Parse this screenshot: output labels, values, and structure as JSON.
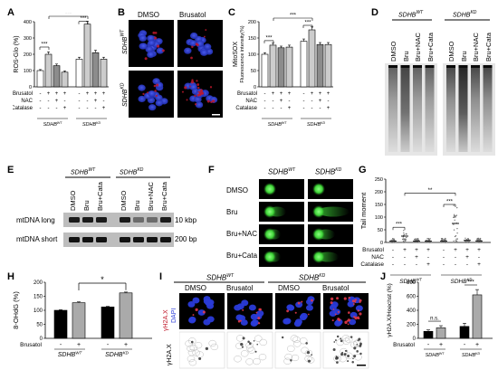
{
  "panels": {
    "A": {
      "label": "A",
      "ylabel": "ROS-Glo (%)",
      "yticks": [
        "0",
        "100",
        "200",
        "300",
        "400"
      ],
      "ymax": 400,
      "values": [
        100,
        200,
        130,
        90,
        170,
        385,
        210,
        170
      ],
      "errors": [
        6,
        15,
        10,
        8,
        12,
        18,
        15,
        12
      ],
      "fills": [
        "#ffffff",
        "#cccccc",
        "#8c8c8c",
        "#cccccc",
        "#ffffff",
        "#cccccc",
        "#8c8c8c",
        "#cccccc"
      ],
      "sig_left": "***",
      "sig_right": "***",
      "sig_top": "***",
      "rows": [
        {
          "name": "Brusatol",
          "signs": [
            "-",
            "+",
            "+",
            "+",
            "-",
            "+",
            "+",
            "+"
          ]
        },
        {
          "name": "NAC",
          "signs": [
            "-",
            "-",
            "+",
            "-",
            "-",
            "-",
            "+",
            "-"
          ]
        },
        {
          "name": "Catalase",
          "signs": [
            "-",
            "-",
            "-",
            "+",
            "-",
            "-",
            "-",
            "+"
          ]
        }
      ],
      "groups": [
        "SDHB^WT",
        "SDHB^KD"
      ]
    },
    "B": {
      "label": "B",
      "cols": [
        "DMSO",
        "Brusatol"
      ],
      "rows": [
        "SDHB^WT",
        "SDHB^KD"
      ]
    },
    "C": {
      "label": "C",
      "ylabel": "MitoSOX",
      "ylabel2": "Fluorescence intensity(%)",
      "yticks": [
        "0",
        "50",
        "100",
        "150",
        "200"
      ],
      "ymax": 200,
      "values": [
        100,
        128,
        120,
        122,
        140,
        175,
        130,
        130
      ],
      "errors": [
        5,
        6,
        5,
        6,
        7,
        9,
        6,
        6
      ],
      "fills": [
        "#ffffff",
        "#cccccc",
        "#8c8c8c",
        "#cccccc",
        "#ffffff",
        "#cccccc",
        "#8c8c8c",
        "#cccccc"
      ],
      "sig_left": "***",
      "sig_right": "***",
      "sig_top": "***",
      "rows": [
        {
          "name": "Brusatol",
          "signs": [
            "-",
            "+",
            "+",
            "+",
            "-",
            "+",
            "+",
            "+"
          ]
        },
        {
          "name": "NAC",
          "signs": [
            "-",
            "-",
            "+",
            "-",
            "-",
            "-",
            "+",
            "-"
          ]
        },
        {
          "name": "Catalase",
          "signs": [
            "-",
            "-",
            "-",
            "+",
            "-",
            "-",
            "-",
            "+"
          ]
        }
      ],
      "groups": [
        "SDHB^WT",
        "SDHB^KD"
      ]
    },
    "D": {
      "label": "D",
      "groups": [
        "SDHB^WT",
        "SDHB^KD"
      ],
      "lanes": [
        "DMSO",
        "Bru",
        "Bru+NAC",
        "Bru+Cata",
        "DMSO",
        "Bru",
        "Bru+NAC",
        "Bru+Cata"
      ]
    },
    "E": {
      "label": "E",
      "groups": [
        "SDHB^WT",
        "SDHB^KD"
      ],
      "lanes": [
        "DMSO",
        "Bru",
        "Bru+Cata",
        "DMSO",
        "Bru",
        "Bru+NAC",
        "Bru+Cata"
      ],
      "bands": [
        {
          "name": "mtDNA long",
          "size": "10 kbp"
        },
        {
          "name": "mtDNA short",
          "size": "200 bp"
        }
      ]
    },
    "F": {
      "label": "F",
      "cols": [
        "SDHB^WT",
        "SDHB^KD"
      ],
      "rows": [
        "DMSO",
        "Bru",
        "Bru+NAC",
        "Bru+Cata"
      ]
    },
    "G": {
      "label": "G",
      "ylabel": "Tail moment",
      "yticks": [
        "0",
        "50",
        "100",
        "150",
        "200",
        "250"
      ],
      "ymax": 250,
      "means": [
        5,
        25,
        5,
        5,
        5,
        75,
        8,
        6
      ],
      "sig_left": "***",
      "sig_right": "***",
      "sig_top": "**",
      "rows": [
        {
          "name": "Brusatol",
          "signs": [
            "-",
            "+",
            "+",
            "+",
            "-",
            "+",
            "+",
            "+"
          ]
        },
        {
          "name": "NAC",
          "signs": [
            "-",
            "-",
            "+",
            "-",
            "-",
            "-",
            "+",
            "-"
          ]
        },
        {
          "name": "Catalase",
          "signs": [
            "-",
            "-",
            "-",
            "+",
            "-",
            "-",
            "-",
            "+"
          ]
        }
      ],
      "groups": [
        "SDHB^WT",
        "SDHB^KD"
      ]
    },
    "H": {
      "label": "H",
      "ylabel": "8-OHdG (%)",
      "yticks": [
        "0",
        "50",
        "100",
        "150",
        "200"
      ],
      "ymax": 200,
      "values": [
        100,
        127,
        112,
        162
      ],
      "errors": [
        2,
        3,
        2,
        3
      ],
      "fills": [
        "#000000",
        "#aaaaaa",
        "#000000",
        "#aaaaaa"
      ],
      "sig": "*",
      "row": {
        "name": "Brusatol",
        "signs": [
          "-",
          "+",
          "-",
          "+"
        ]
      },
      "groups": [
        "SDHB^WT",
        "SDHB^KD"
      ]
    },
    "I": {
      "label": "I",
      "groups": [
        "SDHB^WT",
        "SDHB^KD"
      ],
      "cols": [
        "DMSO",
        "Brusatol",
        "DMSO",
        "Brusatol"
      ],
      "row_labels": [
        "γH2A.X",
        "DAPI",
        "γH2A.X"
      ]
    },
    "J": {
      "label": "J",
      "ylabel": "γH2A.X/Hoechst (%)",
      "yticks": [
        "0",
        "200",
        "400",
        "600",
        "800"
      ],
      "ymax": 800,
      "values": [
        100,
        150,
        170,
        620
      ],
      "errors": [
        20,
        30,
        45,
        75
      ],
      "fills": [
        "#000000",
        "#aaaaaa",
        "#000000",
        "#aaaaaa"
      ],
      "sig_left": "n.s.",
      "sig_right": "***",
      "row": {
        "name": "Brusatol",
        "signs": [
          "-",
          "+",
          "-",
          "+"
        ]
      },
      "groups": [
        "SDHB^WT",
        "SDHB^KD"
      ]
    }
  },
  "colors": {
    "nucleus_blue": "#2a3bd8",
    "signal_red": "#c0182a",
    "comet_green": "#41d63a",
    "gel_dark": "#1a1a1a"
  }
}
